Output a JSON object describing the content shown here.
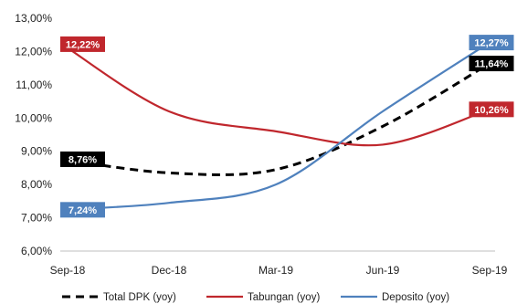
{
  "chart_data": {
    "type": "line",
    "categories": [
      "Sep-18",
      "Dec-18",
      "Mar-19",
      "Jun-19",
      "Sep-19"
    ],
    "ylim": [
      6,
      13
    ],
    "ytick_labels": [
      "13,00%",
      "12,00%",
      "11,00%",
      "10,00%",
      "9,00%",
      "8,00%",
      "7,00%",
      "6,00%"
    ],
    "grid": false,
    "legend_position": "bottom",
    "series": [
      {
        "name": "Total DPK (yoy)",
        "color": "#000000",
        "style": "dashed",
        "values": [
          8.76,
          8.35,
          8.45,
          9.75,
          11.64
        ],
        "start_label": "8,76%",
        "end_label": "11,64%",
        "label_color": "#000000"
      },
      {
        "name": "Tabungan (yoy)",
        "color": "#C0272D",
        "style": "solid",
        "values": [
          12.22,
          10.2,
          9.6,
          9.2,
          10.26
        ],
        "start_label": "12,22%",
        "end_label": "10,26%",
        "label_color": "#C0272D"
      },
      {
        "name": "Deposito (yoy)",
        "color": "#4F81BD",
        "style": "solid",
        "values": [
          7.24,
          7.45,
          8.0,
          10.2,
          12.27
        ],
        "start_label": "7,24%",
        "end_label": "12,27%",
        "label_color": "#4F81BD"
      }
    ]
  }
}
